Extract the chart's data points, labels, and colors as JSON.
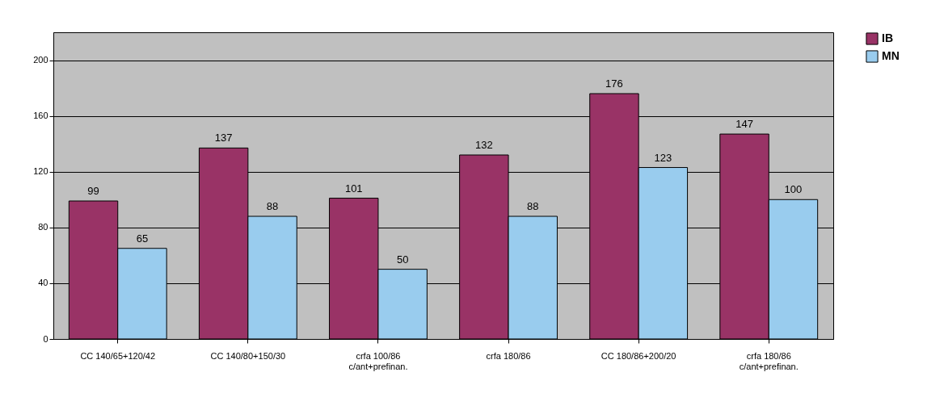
{
  "chart_data": {
    "type": "bar",
    "categories": [
      "CC 140/65+120/42",
      "CC 140/80+150/30",
      "crfa 100/86\nc/ant+prefinan.",
      "crfa 180/86",
      "CC 180/86+200/20",
      "crfa 180/86\nc/ant+prefinan."
    ],
    "series": [
      {
        "name": "IB",
        "color": "#993366",
        "values": [
          99,
          137,
          101,
          132,
          176,
          147
        ]
      },
      {
        "name": "MN",
        "color": "#99ccee",
        "values": [
          65,
          88,
          50,
          88,
          123,
          100
        ]
      }
    ],
    "ylim": [
      0,
      220
    ],
    "yticks": [
      0,
      40,
      80,
      120,
      160,
      200
    ],
    "grid": "y",
    "legend": "right",
    "data_labels": true
  }
}
